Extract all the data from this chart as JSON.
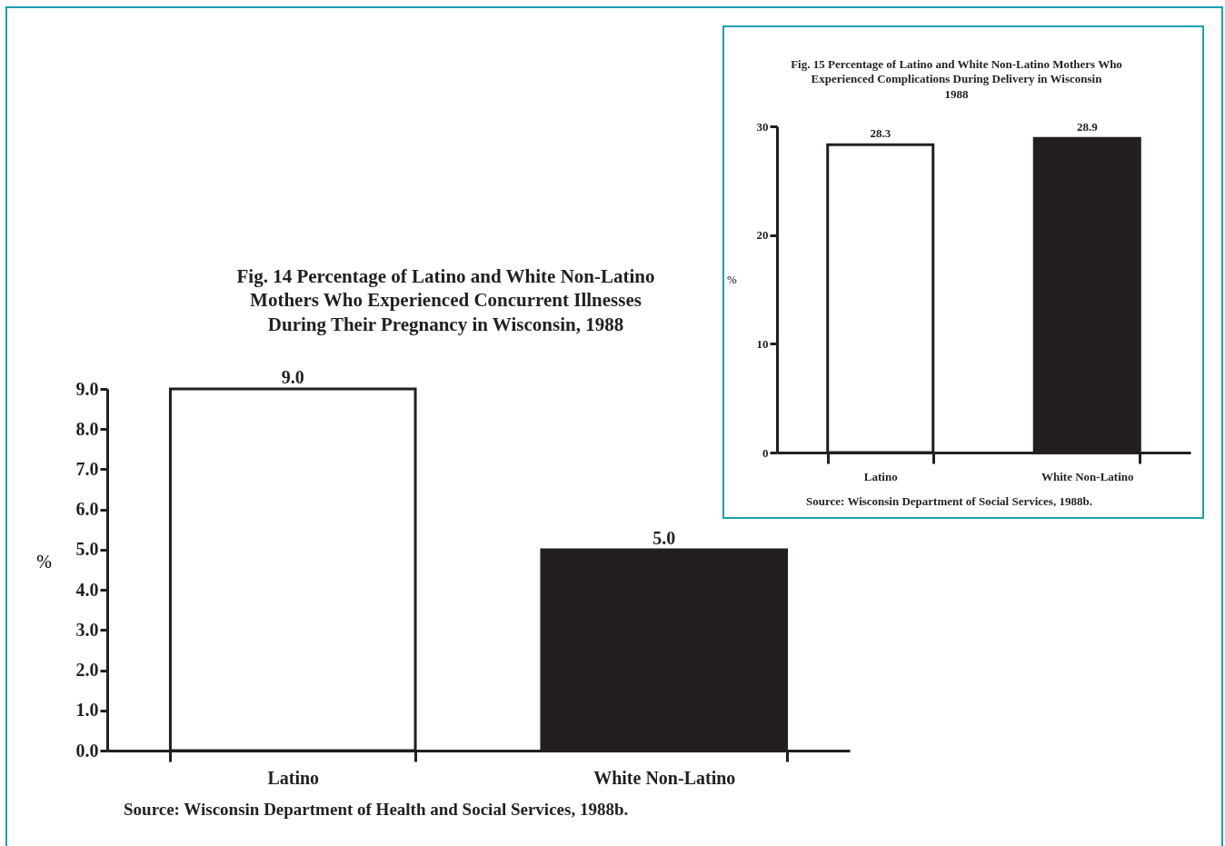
{
  "chart_data": [
    {
      "type": "bar",
      "title": "Fig. 14 Percentage of Latino and White Non-Latino\nMothers Who Experienced Concurrent Illnesses\nDuring Their Pregnancy in Wisconsin, 1988",
      "ylabel": "%",
      "categories": [
        "Latino",
        "White Non-Latino"
      ],
      "values": [
        9.0,
        5.0
      ],
      "colors": [
        "#ffffff",
        "#231f20"
      ],
      "value_labels": [
        "9.0",
        "5.0"
      ],
      "ylim": [
        0,
        9
      ],
      "yticks": [
        {
          "value": 0,
          "label": "0.0"
        },
        {
          "value": 1,
          "label": "1.0"
        },
        {
          "value": 2,
          "label": "2.0"
        },
        {
          "value": 3,
          "label": "3.0"
        },
        {
          "value": 4,
          "label": "4.0"
        },
        {
          "value": 5,
          "label": "5.0"
        },
        {
          "value": 6,
          "label": "6.0"
        },
        {
          "value": 7,
          "label": "7.0"
        },
        {
          "value": 8,
          "label": "8.0"
        },
        {
          "value": 9,
          "label": "9.0"
        }
      ],
      "annotations": [
        "Source: Wisconsin Department of Health and Social Services, 1988b."
      ]
    },
    {
      "type": "bar",
      "title": "Fig. 15 Percentage of Latino and White Non-Latino Mothers Who\nExperienced Complications During Delivery in Wisconsin\n1988",
      "ylabel": "%",
      "categories": [
        "Latino",
        "White Non-Latino"
      ],
      "values": [
        28.3,
        28.9
      ],
      "colors": [
        "#ffffff",
        "#231f20"
      ],
      "data_labels": true,
      "ylim": [
        0,
        30
      ],
      "yticks": [
        0,
        10,
        20,
        30
      ],
      "annotations": [
        "Source: Wisconsin Department of Social Services, 1988b."
      ]
    }
  ]
}
